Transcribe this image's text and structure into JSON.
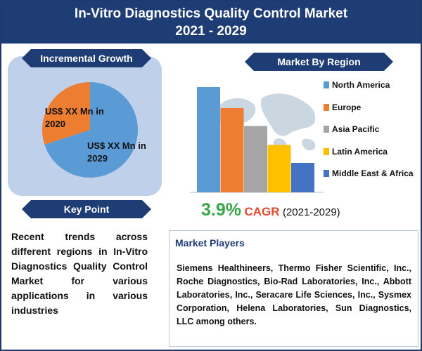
{
  "title": {
    "line1": "In-Vitro Diagnostics Quality Control Market",
    "line2": "2021 - 2029"
  },
  "incremental_growth": {
    "heading": "Incremental Growth",
    "label_2020": "US$ XX Mn in 2020",
    "label_2029": "US$ XX Mn in 2029"
  },
  "key_point": {
    "heading": "Key Point",
    "text": "Recent trends across different regions in In-Vitro Diagnostics Quality Control Market for various applications in various industries"
  },
  "market_by_region": {
    "heading": "Market By Region"
  },
  "cagr": {
    "value": "3.9%",
    "label": "CAGR",
    "years": "(2021-2029)"
  },
  "players": {
    "heading": "Market Players",
    "text": "Siemens Healthineers, Thermo Fisher Scientific, Inc., Roche Diagnostics, Bio-Rad Laboratories, Inc., Abbott Laboratories, Inc., Seracare Life Sciences, Inc., Sysmex Corporation, Helena Laboratories, Sun Diagnostics, LLC among others."
  },
  "colors": {
    "navy": "#1f3d75",
    "north_america": "#5b9bd5",
    "europe": "#ed7d31",
    "asia_pacific": "#a5a5a5",
    "latin_america": "#ffc000",
    "middle_east_africa": "#4472c4",
    "cagr_value": "#3aa64c",
    "cagr_label": "#e64a2e"
  },
  "chart_data": [
    {
      "type": "pie",
      "categories": [
        "2020",
        "2029"
      ],
      "values": [
        30,
        70
      ],
      "colors": [
        "#ed7d31",
        "#5b9bd5"
      ],
      "labels": [
        "US$ XX Mn in 2020",
        "US$ XX Mn in 2029"
      ]
    },
    {
      "type": "bar",
      "title": "Market By Region",
      "categories": [
        "North America",
        "Europe",
        "Asia Pacific",
        "Latin America",
        "Middle East & Africa"
      ],
      "values": [
        100,
        80,
        63,
        45,
        28
      ],
      "colors": [
        "#5b9bd5",
        "#ed7d31",
        "#a5a5a5",
        "#ffc000",
        "#4472c4"
      ],
      "ylim": [
        0,
        100
      ],
      "legend_placement": "right"
    }
  ]
}
